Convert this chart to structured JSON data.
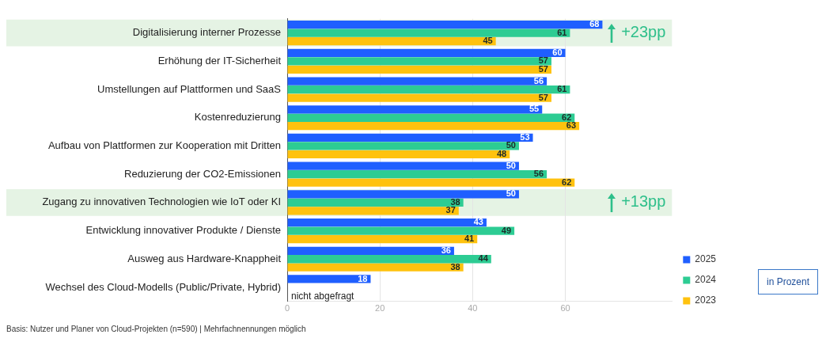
{
  "chart_data": {
    "type": "bar",
    "orientation": "horizontal",
    "categories": [
      "Digitalisierung interner Prozesse",
      "Erhöhung der IT-Sicherheit",
      "Umstellungen auf Plattformen und SaaS",
      "Kostenreduzierung",
      "Aufbau von Plattformen zur Kooperation mit Dritten",
      "Reduzierung der CO2-Emissionen",
      "Zugang zu innovativen Technologien wie IoT oder KI",
      "Entwicklung innovativer Produkte / Dienste",
      "Ausweg aus Hardware-Knappheit",
      "Wechsel des Cloud-Modells (Public/Private, Hybrid)"
    ],
    "series": [
      {
        "name": "2025",
        "color": "#1f5fff",
        "values": [
          68,
          60,
          56,
          55,
          53,
          50,
          50,
          43,
          36,
          18
        ]
      },
      {
        "name": "2024",
        "color": "#2dcc93",
        "values": [
          61,
          57,
          61,
          62,
          50,
          56,
          38,
          49,
          44,
          null
        ]
      },
      {
        "name": "2023",
        "color": "#ffc20e",
        "values": [
          45,
          57,
          57,
          63,
          48,
          62,
          37,
          41,
          38,
          null
        ]
      }
    ],
    "xlim": [
      0,
      83
    ],
    "xticks": [
      0,
      20,
      40,
      60
    ],
    "grid": "x",
    "legend": "bottom right",
    "data_labels": true,
    "bands": [
      {
        "axis": "y",
        "from": "Digitalisierung interner Prozesse",
        "to": "Digitalisierung interner Prozesse",
        "label": "+23pp",
        "color": "#e5f3e4"
      },
      {
        "axis": "y",
        "from": "Zugang zu innovativen Technologien wie IoT oder KI",
        "to": "Zugang zu innovativen Technologien wie IoT oder KI",
        "label": "+13pp",
        "color": "#e5f3e4"
      }
    ],
    "annotations": [
      {
        "text": "nicht abgefragt",
        "x": 0,
        "y": "Wechsel des Cloud-Modells (Public/Private, Hybrid)"
      },
      "in Prozent",
      "Basis: Nutzer und Planer von Cloud-Projekten (n=590) | Mehrfachnennungen möglich"
    ]
  }
}
